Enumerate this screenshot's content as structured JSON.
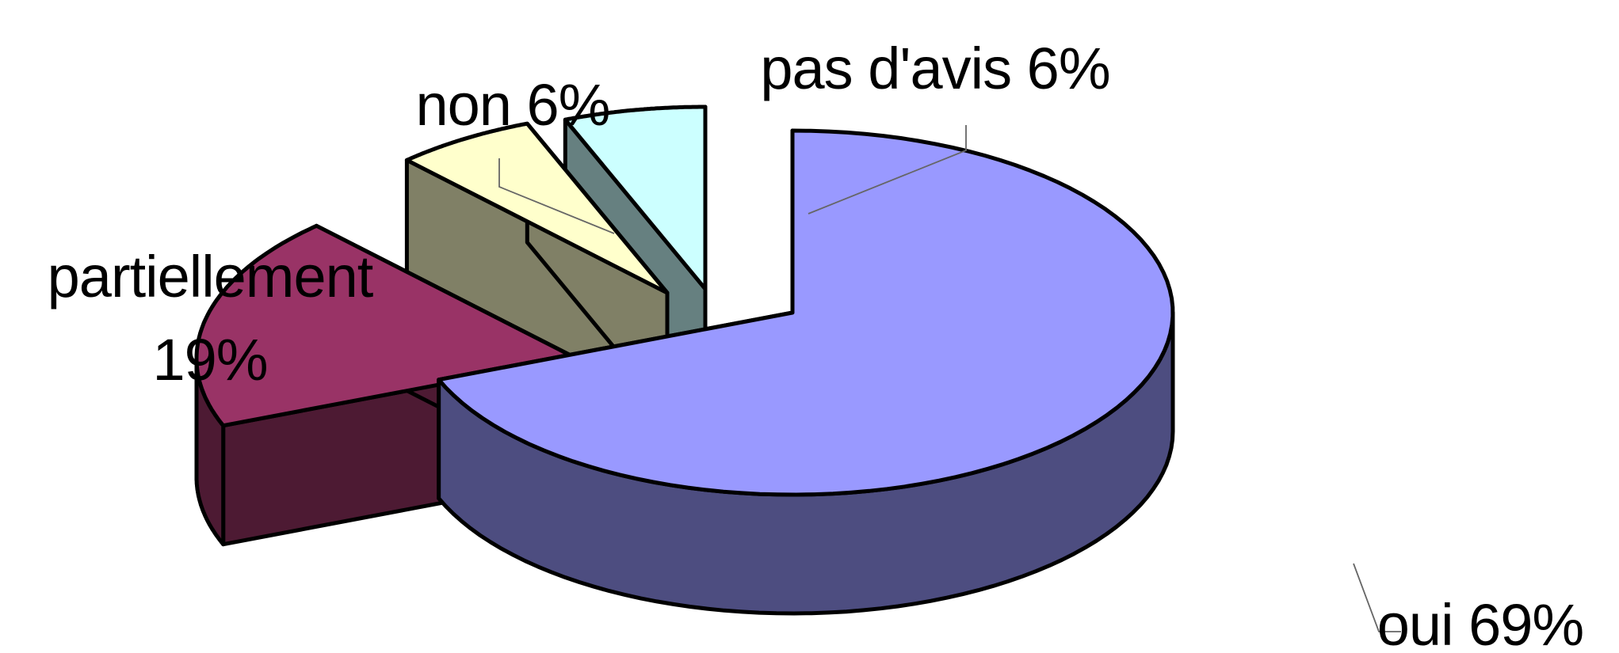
{
  "chart_data": {
    "type": "pie",
    "title": "",
    "three_d": true,
    "exploded": true,
    "slices": [
      {
        "name": "oui",
        "value": 69,
        "label": "oui 69%",
        "top_color": "#9999ff",
        "side_color": "#4d4d80"
      },
      {
        "name": "partiellement",
        "value": 19,
        "label_line1": "partiellement",
        "label_line2": "19%",
        "top_color": "#993366",
        "side_color": "#4d1a33"
      },
      {
        "name": "non",
        "value": 6,
        "label": "non 6%",
        "top_color": "#ffffcc",
        "side_color": "#808066"
      },
      {
        "name": "pas d'avis",
        "value": 6,
        "label": "pas d'avis 6%",
        "top_color": "#ccffff",
        "side_color": "#668080"
      }
    ],
    "legend": "none",
    "grid": false
  }
}
